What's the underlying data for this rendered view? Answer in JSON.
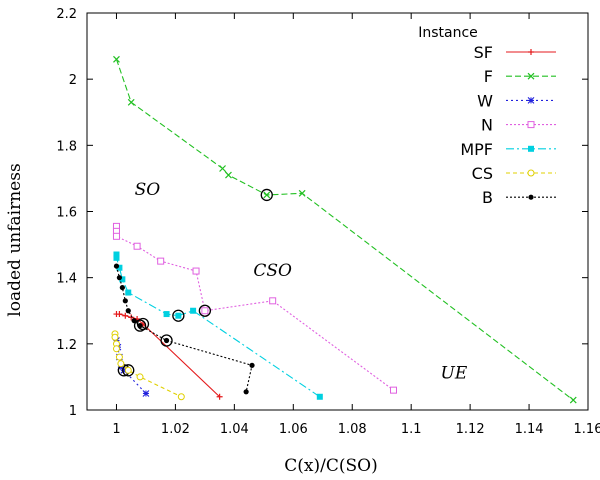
{
  "chart_data": {
    "type": "line",
    "title": "",
    "xlabel": "C(x)/C(SO)",
    "ylabel": "loaded unfairness",
    "xlim": [
      0.99,
      1.16
    ],
    "ylim": [
      1.0,
      2.2
    ],
    "xticks": [
      "1",
      "1.02",
      "1.04",
      "1.06",
      "1.08",
      "1.1",
      "1.12",
      "1.14",
      "1.16"
    ],
    "xtick_values": [
      1.0,
      1.02,
      1.04,
      1.06,
      1.08,
      1.1,
      1.12,
      1.14,
      1.16
    ],
    "yticks": [
      "1",
      "1.2",
      "1.4",
      "1.6",
      "1.8",
      "2",
      "2.2"
    ],
    "ytick_values": [
      1.0,
      1.2,
      1.4,
      1.6,
      1.8,
      2.0,
      2.2
    ],
    "grid": false,
    "legend_title": "Instance",
    "legend_position": "top-right",
    "regions": [
      {
        "label": "SO",
        "x": 1.0105,
        "y": 1.65
      },
      {
        "label": "CSO",
        "x": 1.053,
        "y": 1.405
      },
      {
        "label": "UE",
        "x": 1.1145,
        "y": 1.095
      }
    ],
    "series": [
      {
        "name": "SF",
        "color": "#e41a1c",
        "marker": "plus",
        "dash": "",
        "x": [
          1.0,
          1.001,
          1.003,
          1.005,
          1.007,
          1.009,
          1.035
        ],
        "y": [
          1.29,
          1.29,
          1.285,
          1.28,
          1.275,
          1.26,
          1.04
        ],
        "circled": [
          5
        ]
      },
      {
        "name": "F",
        "color": "#22c022",
        "marker": "x",
        "dash": "6,3",
        "x": [
          1.0,
          1.005,
          1.036,
          1.038,
          1.051,
          1.063,
          1.155
        ],
        "y": [
          2.06,
          1.93,
          1.73,
          1.71,
          1.65,
          1.655,
          1.03
        ],
        "circled": [
          4
        ]
      },
      {
        "name": "W",
        "color": "#2222dd",
        "marker": "star",
        "dash": "2,3",
        "x": [
          1.0,
          1.0005,
          1.001,
          1.0015,
          1.0025,
          1.01
        ],
        "y": [
          1.21,
          1.19,
          1.16,
          1.13,
          1.12,
          1.05
        ],
        "circled": [
          4
        ]
      },
      {
        "name": "N",
        "color": "#e060e0",
        "marker": "square",
        "dash": "2,2",
        "x": [
          1.0,
          1.0,
          1.0,
          1.007,
          1.015,
          1.027,
          1.03,
          1.053,
          1.094
        ],
        "y": [
          1.555,
          1.54,
          1.525,
          1.495,
          1.45,
          1.42,
          1.3,
          1.33,
          1.06
        ],
        "circled": [
          6
        ]
      },
      {
        "name": "MPF",
        "color": "#00d0e0",
        "marker": "filled-square",
        "dash": "8,3,2,3",
        "x": [
          1.0,
          1.0,
          1.001,
          1.002,
          1.004,
          1.017,
          1.021,
          1.026,
          1.069
        ],
        "y": [
          1.47,
          1.46,
          1.43,
          1.395,
          1.355,
          1.29,
          1.285,
          1.3,
          1.04
        ],
        "circled": [
          6
        ]
      },
      {
        "name": "CS",
        "color": "#e0d000",
        "marker": "circle",
        "dash": "4,3",
        "x": [
          0.9995,
          0.9995,
          1.0,
          1.0,
          1.001,
          1.0015,
          1.004,
          1.008,
          1.022
        ],
        "y": [
          1.23,
          1.22,
          1.2,
          1.185,
          1.16,
          1.14,
          1.12,
          1.1,
          1.04
        ],
        "circled": [
          6
        ]
      },
      {
        "name": "B",
        "color": "#000000",
        "marker": "filled-circle",
        "dash": "2,2",
        "x": [
          1.0,
          1.001,
          1.002,
          1.003,
          1.004,
          1.006,
          1.008,
          1.017,
          1.046,
          1.044
        ],
        "y": [
          1.435,
          1.4,
          1.37,
          1.33,
          1.3,
          1.27,
          1.255,
          1.21,
          1.135,
          1.055
        ],
        "circled": [
          6,
          7
        ]
      }
    ]
  }
}
